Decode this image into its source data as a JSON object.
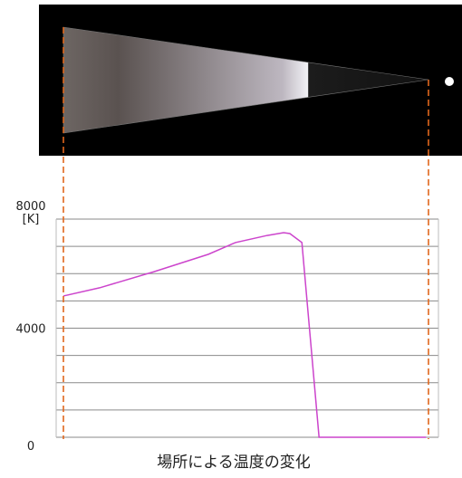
{
  "chart_data": {
    "type": "line",
    "caption": "場所による温度の変化",
    "y_label": "[K]",
    "x": [
      0,
      9.9,
      24.8,
      39.7,
      47.1,
      55.8,
      60.3,
      62,
      65.3,
      70,
      99.3
    ],
    "series": [
      {
        "color": "#cc44cc",
        "values": [
          5180,
          5480,
          6070,
          6710,
          7140,
          7400,
          7500,
          7470,
          7140,
          0,
          0
        ]
      }
    ],
    "xlim": [
      -2,
      102.7
    ],
    "ylim": [
      0,
      8000
    ],
    "yticks": [
      0,
      4000,
      8000
    ],
    "ygrid": [
      0,
      1000,
      2000,
      3000,
      4000,
      5000,
      6000,
      7000,
      8000
    ],
    "grid": true
  }
}
